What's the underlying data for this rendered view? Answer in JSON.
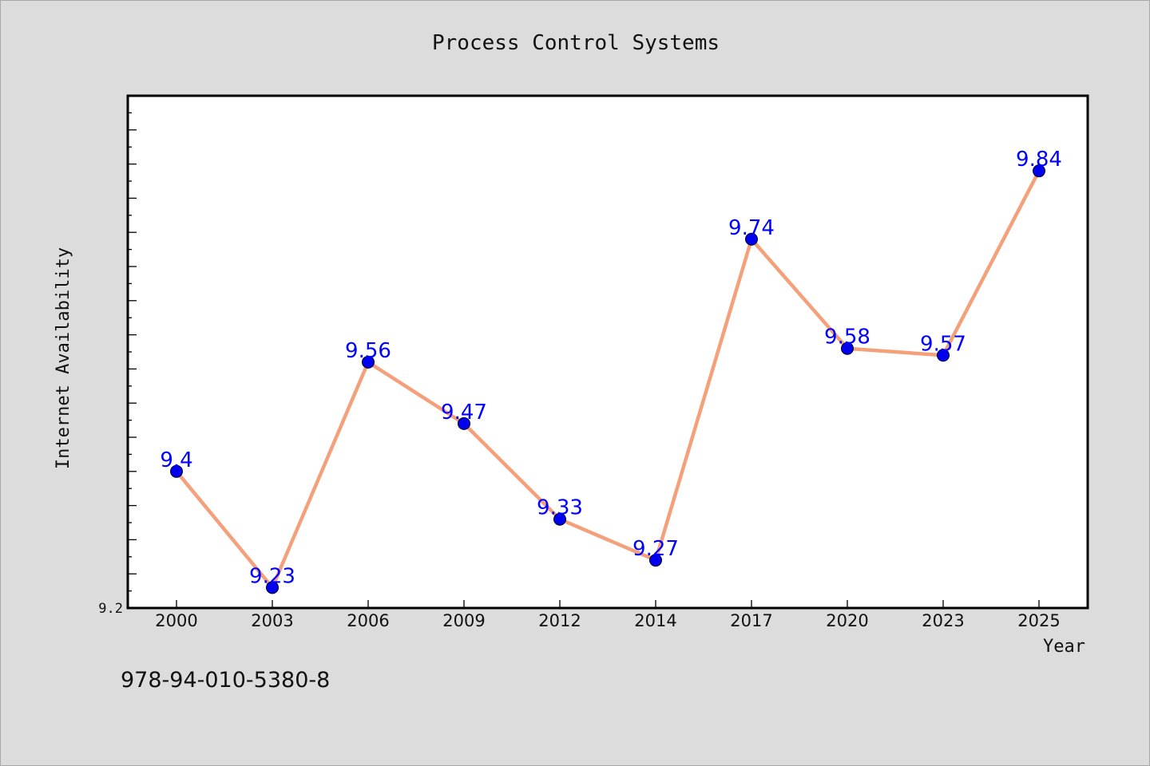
{
  "footer": {
    "code": "978-94-010-5380-8"
  },
  "chart_data": {
    "type": "line",
    "title": "Process Control Systems",
    "xlabel": "Year",
    "ylabel": "Internet Availability",
    "categories": [
      "2000",
      "2003",
      "2006",
      "2009",
      "2012",
      "2014",
      "2017",
      "2020",
      "2023",
      "2025"
    ],
    "series": [
      {
        "values": [
          9.4,
          9.23,
          9.56,
          9.47,
          9.33,
          9.27,
          9.74,
          9.58,
          9.57,
          9.84
        ]
      }
    ],
    "data_labels": [
      "9.4",
      "9.23",
      "9.56",
      "9.47",
      "9.33",
      "9.27",
      "9.74",
      "9.58",
      "9.57",
      "9.84"
    ],
    "ylim": [
      9.2,
      9.95
    ],
    "y_tick_labels": [
      "9.2"
    ],
    "grid": false,
    "legend": "none",
    "colors": {
      "line": "#f4a07a",
      "marker": "#0000ee",
      "label": "#0000ff",
      "background": "#dcdcdc",
      "plot_area": "#ffffff"
    }
  }
}
